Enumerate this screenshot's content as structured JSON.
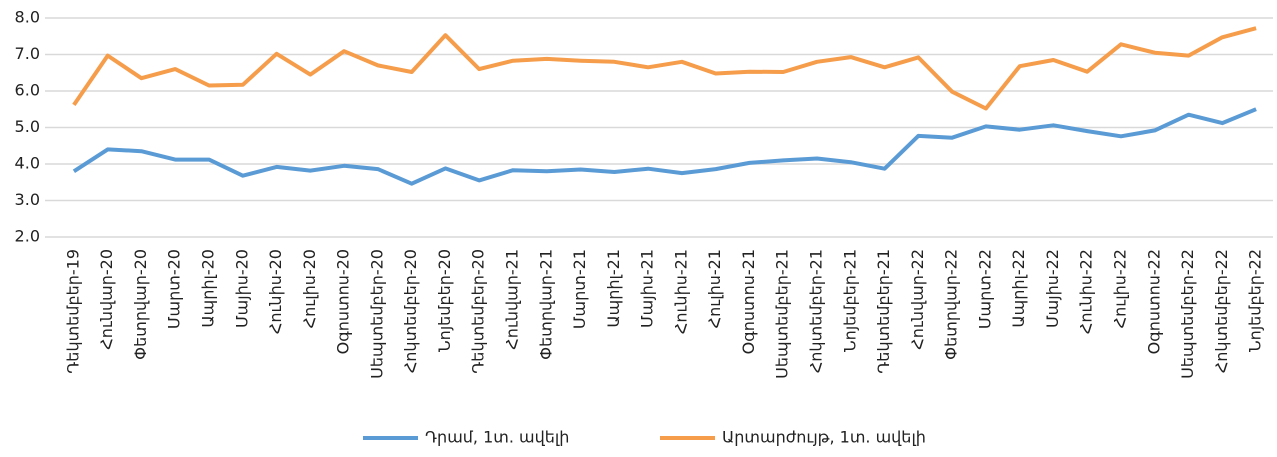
{
  "chart_data": {
    "type": "line",
    "categories": [
      "Դեկտեմբեր-19",
      "Հունվար-20",
      "Փետրվար-20",
      "Մարտ-20",
      "Ապրիլ-20",
      "Մայիս-20",
      "Հունիս-20",
      "Հուլիս-20",
      "Օգոստոս-20",
      "Սեպտեմբեր-20",
      "Հոկտեմբեր-20",
      "Նոյեմբեր-20",
      "Դեկտեմբեր-20",
      "Հունվար-21",
      "Փետրվար-21",
      "Մարտ-21",
      "Ապրիլ-21",
      "Մայիս-21",
      "Հունիս-21",
      "Հուլիս-21",
      "Օգոստոս-21",
      "Սեպտեմբեր-21",
      "Հոկտեմբեր-21",
      "Նոյեմբեր-21",
      "Դեկտեմբեր-21",
      "Հունվար-22",
      "Փետրվար-22",
      "Մարտ-22",
      "Ապրիլ-22",
      "Մայիս-22",
      "Հունիս-22",
      "Հուլիս-22",
      "Օգոստոս-22",
      "Սեպտեմբեր-22",
      "Հոկտեմբեր-22",
      "Նոյեմբեր-22"
    ],
    "series": [
      {
        "name": "Դրամ, 1տ. ավելի",
        "color": "#5b9bd5",
        "values": [
          3.8,
          4.4,
          4.35,
          4.12,
          4.12,
          3.68,
          3.92,
          3.82,
          3.95,
          3.86,
          3.46,
          3.88,
          3.55,
          3.83,
          3.8,
          3.85,
          3.78,
          3.87,
          3.75,
          3.86,
          4.03,
          4.1,
          4.15,
          4.05,
          3.87,
          4.77,
          4.72,
          5.03,
          4.94,
          5.06,
          4.9,
          4.76,
          4.92,
          5.35,
          5.12,
          5.5
        ]
      },
      {
        "name": "Արտարժույթ, 1տ. ավելի",
        "color": "#f59d4b",
        "values": [
          5.62,
          6.97,
          6.35,
          6.6,
          6.15,
          6.17,
          7.02,
          6.45,
          7.09,
          6.7,
          6.52,
          7.53,
          6.6,
          6.83,
          6.88,
          6.83,
          6.8,
          6.65,
          6.8,
          6.48,
          6.53,
          6.52,
          6.8,
          6.93,
          6.65,
          6.92,
          5.98,
          5.52,
          6.68,
          6.85,
          6.53,
          7.28,
          7.05,
          6.97,
          7.47,
          7.72
        ]
      }
    ],
    "ylim": [
      2,
      8
    ],
    "yticks": [
      {
        "value": 2,
        "label": "2.0"
      },
      {
        "value": 3,
        "label": "3.0"
      },
      {
        "value": 4,
        "label": "4.0"
      },
      {
        "value": 5,
        "label": "5.0"
      },
      {
        "value": 6,
        "label": "6.0"
      },
      {
        "value": 7,
        "label": "7.0"
      },
      {
        "value": 8,
        "label": "8.0"
      }
    ],
    "grid": true,
    "legend": "bottom"
  }
}
